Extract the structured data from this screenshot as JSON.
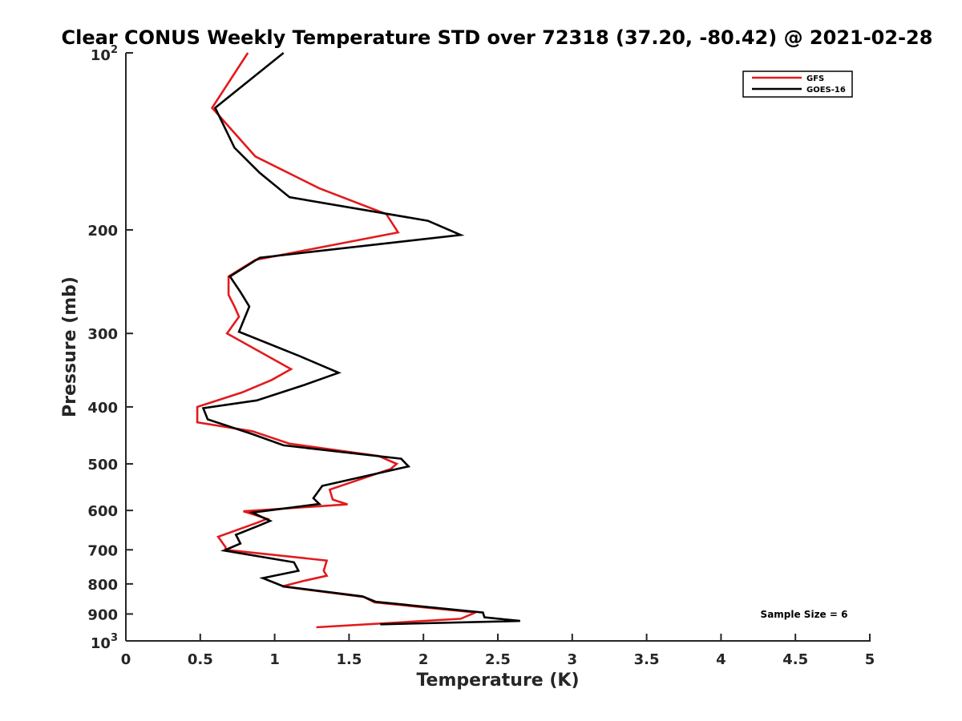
{
  "chart_data": {
    "type": "line",
    "title": "Clear CONUS Weekly Temperature STD over 72318 (37.20, -80.42) @ 2021-02-28",
    "xlabel": "Temperature (K)",
    "ylabel": "Pressure (mb)",
    "xlim": [
      0,
      5
    ],
    "ylim": [
      100,
      1000
    ],
    "y_scale": "log",
    "y_reversed": true,
    "grid": false,
    "legend_position": "top-right",
    "x_ticks": [
      "0",
      "0.5",
      "1",
      "1.5",
      "2",
      "2.5",
      "3",
      "3.5",
      "4",
      "4.5",
      "5"
    ],
    "y_ticks": [
      {
        "value": 100,
        "base": "10",
        "exp": "2"
      },
      {
        "value": 200,
        "label": "200"
      },
      {
        "value": 300,
        "label": "300"
      },
      {
        "value": 400,
        "label": "400"
      },
      {
        "value": 500,
        "label": "500"
      },
      {
        "value": 600,
        "label": "600"
      },
      {
        "value": 700,
        "label": "700"
      },
      {
        "value": 800,
        "label": "800"
      },
      {
        "value": 900,
        "label": "900"
      },
      {
        "value": 1000,
        "base": "10",
        "exp": "3"
      }
    ],
    "annotation": "Sample Size = 6",
    "series": [
      {
        "name": "GFS",
        "color": "#e31a1c",
        "points": [
          [
            0.82,
            100
          ],
          [
            0.58,
            124
          ],
          [
            0.87,
            150
          ],
          [
            1.3,
            170
          ],
          [
            1.75,
            188
          ],
          [
            1.83,
            202
          ],
          [
            0.87,
            225
          ],
          [
            0.69,
            240
          ],
          [
            0.69,
            258
          ],
          [
            0.73,
            270
          ],
          [
            0.76,
            281
          ],
          [
            0.68,
            300
          ],
          [
            1.11,
            345
          ],
          [
            0.98,
            360
          ],
          [
            0.78,
            378
          ],
          [
            0.48,
            400
          ],
          [
            0.48,
            425
          ],
          [
            0.85,
            440
          ],
          [
            1.1,
            462
          ],
          [
            1.7,
            485
          ],
          [
            1.82,
            500
          ],
          [
            1.78,
            510
          ],
          [
            1.37,
            553
          ],
          [
            1.39,
            575
          ],
          [
            1.49,
            586
          ],
          [
            0.79,
            602
          ],
          [
            0.95,
            620
          ],
          [
            0.88,
            630
          ],
          [
            0.62,
            665
          ],
          [
            0.67,
            693
          ],
          [
            0.67,
            700
          ],
          [
            1.35,
            730
          ],
          [
            1.33,
            760
          ],
          [
            1.35,
            775
          ],
          [
            1.2,
            790
          ],
          [
            1.05,
            808
          ],
          [
            1.6,
            842
          ],
          [
            1.67,
            860
          ],
          [
            2.35,
            895
          ],
          [
            2.25,
            917
          ],
          [
            1.28,
            948
          ]
        ]
      },
      {
        "name": "GOES-16",
        "color": "#000000",
        "points": [
          [
            1.06,
            100
          ],
          [
            0.6,
            124
          ],
          [
            0.73,
            145
          ],
          [
            0.9,
            160
          ],
          [
            1.1,
            176
          ],
          [
            2.03,
            193
          ],
          [
            2.25,
            204
          ],
          [
            0.9,
            223
          ],
          [
            0.7,
            240
          ],
          [
            0.77,
            255
          ],
          [
            0.83,
            270
          ],
          [
            0.76,
            298
          ],
          [
            1.17,
            328
          ],
          [
            1.43,
            350
          ],
          [
            1.2,
            367
          ],
          [
            0.88,
            390
          ],
          [
            0.52,
            402
          ],
          [
            0.55,
            420
          ],
          [
            0.85,
            445
          ],
          [
            1.06,
            465
          ],
          [
            1.85,
            490
          ],
          [
            1.9,
            505
          ],
          [
            1.32,
            545
          ],
          [
            1.26,
            572
          ],
          [
            1.3,
            585
          ],
          [
            0.85,
            605
          ],
          [
            0.97,
            625
          ],
          [
            0.9,
            636
          ],
          [
            0.74,
            660
          ],
          [
            0.77,
            683
          ],
          [
            0.66,
            702
          ],
          [
            1.13,
            735
          ],
          [
            1.16,
            760
          ],
          [
            0.92,
            782
          ],
          [
            1.06,
            808
          ],
          [
            1.59,
            840
          ],
          [
            1.68,
            858
          ],
          [
            2.4,
            895
          ],
          [
            2.41,
            912
          ],
          [
            2.65,
            925
          ],
          [
            1.71,
            937
          ]
        ]
      }
    ]
  }
}
